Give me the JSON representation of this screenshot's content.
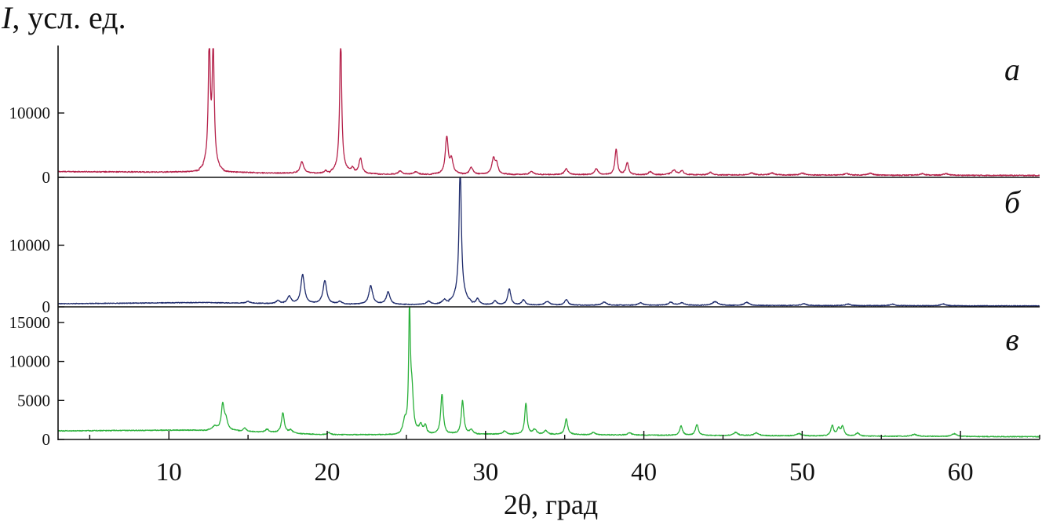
{
  "chart_data": {
    "type": "line",
    "ylabel": {
      "symbol": "I",
      "rest": ", усл. ед."
    },
    "xlabel": "2θ, град",
    "xlim": [
      3,
      65
    ],
    "x_ticks": [
      10,
      20,
      30,
      40,
      50,
      60
    ],
    "x_tick_labels": [
      "10",
      "20",
      "30",
      "40",
      "50",
      "60"
    ],
    "minor_tick_step": 5,
    "grid": false,
    "legend": "none",
    "panels": [
      {
        "letter": "а",
        "color": "#b5214a",
        "ylim": [
          0,
          20000
        ],
        "y_ticks": [
          0,
          10000
        ],
        "y_tick_labels": [
          "0",
          "10000"
        ],
        "baseline": [
          [
            3,
            900
          ],
          [
            12,
            800
          ],
          [
            24,
            500
          ],
          [
            40,
            400
          ],
          [
            65,
            300
          ]
        ],
        "noise": 150,
        "peaks": [
          [
            12.55,
            18500,
            0.08
          ],
          [
            12.8,
            18000,
            0.08
          ],
          [
            12.65,
            2500,
            0.35
          ],
          [
            18.4,
            1800,
            0.15
          ],
          [
            19.9,
            400,
            0.12
          ],
          [
            20.85,
            20500,
            0.08
          ],
          [
            20.85,
            1500,
            0.3
          ],
          [
            21.6,
            900,
            0.12
          ],
          [
            22.1,
            2400,
            0.13
          ],
          [
            24.6,
            500,
            0.15
          ],
          [
            25.6,
            400,
            0.15
          ],
          [
            27.55,
            5700,
            0.12
          ],
          [
            27.85,
            2200,
            0.14
          ],
          [
            29.1,
            1100,
            0.15
          ],
          [
            30.5,
            2400,
            0.14
          ],
          [
            30.7,
            1500,
            0.12
          ],
          [
            32.9,
            500,
            0.15
          ],
          [
            35.1,
            900,
            0.15
          ],
          [
            37.0,
            900,
            0.15
          ],
          [
            38.25,
            4000,
            0.1
          ],
          [
            38.95,
            1900,
            0.12
          ],
          [
            40.4,
            500,
            0.15
          ],
          [
            41.9,
            700,
            0.2
          ],
          [
            42.4,
            600,
            0.15
          ],
          [
            44.2,
            400,
            0.15
          ],
          [
            46.8,
            300,
            0.2
          ],
          [
            48.1,
            300,
            0.2
          ],
          [
            50.0,
            300,
            0.2
          ],
          [
            52.8,
            250,
            0.2
          ],
          [
            54.3,
            300,
            0.2
          ],
          [
            57.6,
            250,
            0.2
          ],
          [
            59.1,
            250,
            0.2
          ]
        ]
      },
      {
        "letter": "б",
        "color": "#1d2a6b",
        "ylim": [
          0,
          21000
        ],
        "y_ticks": [
          0,
          10000
        ],
        "y_tick_labels": [
          "0",
          "10000"
        ],
        "baseline": [
          [
            3,
            500
          ],
          [
            12,
            700
          ],
          [
            18,
            500
          ],
          [
            30,
            300
          ],
          [
            65,
            150
          ]
        ],
        "noise": 120,
        "peaks": [
          [
            15.0,
            300,
            0.15
          ],
          [
            16.9,
            500,
            0.15
          ],
          [
            17.6,
            1200,
            0.15
          ],
          [
            18.45,
            4800,
            0.15
          ],
          [
            19.85,
            3800,
            0.16
          ],
          [
            20.8,
            400,
            0.15
          ],
          [
            22.75,
            3000,
            0.16
          ],
          [
            23.85,
            2000,
            0.16
          ],
          [
            26.4,
            500,
            0.18
          ],
          [
            27.4,
            700,
            0.18
          ],
          [
            28.4,
            21000,
            0.09
          ],
          [
            28.4,
            2600,
            0.35
          ],
          [
            29.5,
            900,
            0.14
          ],
          [
            30.6,
            600,
            0.15
          ],
          [
            31.5,
            2600,
            0.13
          ],
          [
            32.4,
            800,
            0.15
          ],
          [
            33.9,
            600,
            0.2
          ],
          [
            35.1,
            900,
            0.15
          ],
          [
            37.5,
            500,
            0.2
          ],
          [
            39.8,
            400,
            0.2
          ],
          [
            41.7,
            500,
            0.2
          ],
          [
            42.4,
            400,
            0.2
          ],
          [
            44.5,
            600,
            0.25
          ],
          [
            46.5,
            500,
            0.2
          ],
          [
            50.1,
            300,
            0.2
          ],
          [
            52.9,
            250,
            0.2
          ],
          [
            55.7,
            250,
            0.2
          ],
          [
            58.9,
            300,
            0.2
          ]
        ]
      },
      {
        "letter": "в",
        "color": "#2ab03a",
        "ylim": [
          0,
          17000
        ],
        "y_ticks": [
          0,
          5000,
          10000,
          15000
        ],
        "y_tick_labels": [
          "0",
          "5000",
          "10000",
          "15000"
        ],
        "baseline": [
          [
            3,
            1100
          ],
          [
            11,
            1200
          ],
          [
            14,
            1100
          ],
          [
            20,
            600
          ],
          [
            30,
            700
          ],
          [
            45,
            500
          ],
          [
            65,
            350
          ]
        ],
        "noise": 110,
        "peaks": [
          [
            12.9,
            500,
            0.2
          ],
          [
            13.4,
            3200,
            0.12
          ],
          [
            13.6,
            1300,
            0.15
          ],
          [
            14.8,
            400,
            0.15
          ],
          [
            16.2,
            400,
            0.15
          ],
          [
            17.2,
            2600,
            0.12
          ],
          [
            17.7,
            400,
            0.15
          ],
          [
            20.1,
            300,
            0.15
          ],
          [
            24.9,
            1500,
            0.15
          ],
          [
            25.2,
            15800,
            0.07
          ],
          [
            25.35,
            5000,
            0.12
          ],
          [
            25.9,
            1200,
            0.15
          ],
          [
            26.2,
            1100,
            0.12
          ],
          [
            27.25,
            5200,
            0.11
          ],
          [
            28.55,
            4300,
            0.11
          ],
          [
            29.1,
            500,
            0.15
          ],
          [
            31.2,
            400,
            0.15
          ],
          [
            32.55,
            4000,
            0.1
          ],
          [
            33.1,
            600,
            0.15
          ],
          [
            33.8,
            500,
            0.15
          ],
          [
            35.1,
            2000,
            0.12
          ],
          [
            36.8,
            300,
            0.15
          ],
          [
            39.1,
            300,
            0.15
          ],
          [
            42.35,
            1200,
            0.12
          ],
          [
            43.35,
            1400,
            0.12
          ],
          [
            45.8,
            400,
            0.2
          ],
          [
            47.1,
            350,
            0.2
          ],
          [
            49.8,
            300,
            0.2
          ],
          [
            51.9,
            1300,
            0.12
          ],
          [
            52.3,
            900,
            0.12
          ],
          [
            52.55,
            1200,
            0.12
          ],
          [
            53.5,
            400,
            0.15
          ],
          [
            57.1,
            250,
            0.2
          ],
          [
            59.6,
            350,
            0.2
          ]
        ]
      }
    ]
  }
}
